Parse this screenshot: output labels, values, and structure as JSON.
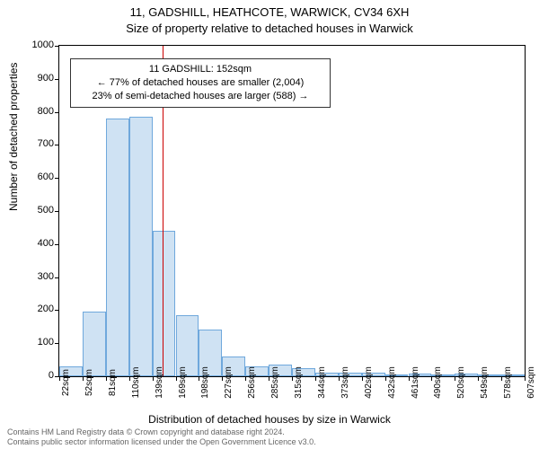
{
  "title_line1": "11, GADSHILL, HEATHCOTE, WARWICK, CV34 6XH",
  "title_line2": "Size of property relative to detached houses in Warwick",
  "ylabel": "Number of detached properties",
  "xlabel": "Distribution of detached houses by size in Warwick",
  "footnote1": "Contains HM Land Registry data © Crown copyright and database right 2024.",
  "footnote2": "Contains public sector information licensed under the Open Government Licence v3.0.",
  "chart": {
    "type": "histogram",
    "background_color": "#ffffff",
    "border_color": "#000000",
    "ylim": [
      0,
      1000
    ],
    "ytick_step": 100,
    "xtick_labels": [
      "22sqm",
      "52sqm",
      "81sqm",
      "110sqm",
      "139sqm",
      "169sqm",
      "198sqm",
      "227sqm",
      "256sqm",
      "285sqm",
      "315sqm",
      "344sqm",
      "373sqm",
      "402sqm",
      "432sqm",
      "461sqm",
      "490sqm",
      "520sqm",
      "549sqm",
      "578sqm",
      "607sqm"
    ],
    "bar_values": [
      30,
      195,
      780,
      785,
      440,
      185,
      140,
      60,
      30,
      35,
      25,
      10,
      12,
      10,
      5,
      8,
      5,
      8,
      3,
      5
    ],
    "bar_fill_color": "#cfe2f3",
    "bar_border_color": "#6fa8dc",
    "marker_line_position": 152,
    "marker_line_color": "#cc0000",
    "x_min": 22,
    "x_max": 607,
    "label_fontsize": 12,
    "tick_fontsize": 11,
    "xtick_fontsize": 10,
    "title_fontsize": 13
  },
  "annotation": {
    "line1": "11 GADSHILL: 152sqm",
    "line2": "← 77% of detached houses are smaller (2,004)",
    "line3": "23% of semi-detached houses are larger (588) →",
    "border_color": "#333333",
    "background_color": "#ffffff"
  }
}
